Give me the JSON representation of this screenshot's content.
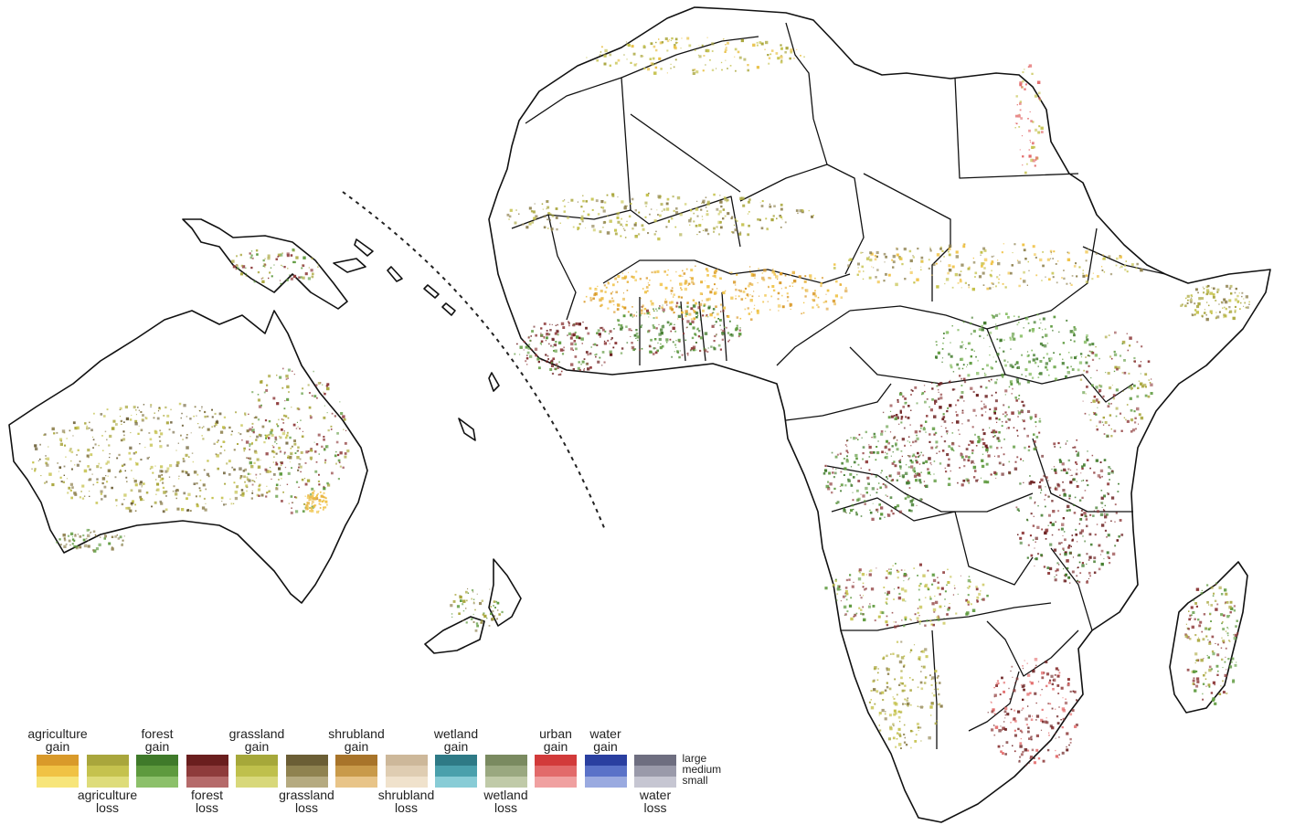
{
  "legend": {
    "items": [
      {
        "id": "agri-gain",
        "label_line1": "agriculture",
        "label_line2": "gain",
        "pos": "top",
        "colors": [
          "#d99a2a",
          "#f0c244",
          "#f7e57a"
        ]
      },
      {
        "id": "agri-loss",
        "label_line1": "agriculture",
        "label_line2": "loss",
        "pos": "bottom",
        "colors": [
          "#a9a63c",
          "#c5c24e",
          "#dedc7a"
        ]
      },
      {
        "id": "forest-gain",
        "label_line1": "forest",
        "label_line2": "gain",
        "pos": "top",
        "colors": [
          "#3f7a2a",
          "#5e9a3e",
          "#8cc06a"
        ]
      },
      {
        "id": "forest-loss",
        "label_line1": "forest",
        "label_line2": "loss",
        "pos": "bottom",
        "colors": [
          "#6a1e1e",
          "#8e3b3b",
          "#b56a6a"
        ]
      },
      {
        "id": "grass-gain",
        "label_line1": "grassland",
        "label_line2": "gain",
        "pos": "top",
        "colors": [
          "#a6a83a",
          "#bfc04c",
          "#d8d87a"
        ]
      },
      {
        "id": "grass-loss",
        "label_line1": "grassland",
        "label_line2": "loss",
        "pos": "bottom",
        "colors": [
          "#6b5e35",
          "#8f8250",
          "#b5aa80"
        ]
      },
      {
        "id": "shrub-gain",
        "label_line1": "shrubland",
        "label_line2": "gain",
        "pos": "top",
        "colors": [
          "#a8742a",
          "#c99a4a",
          "#e8c488"
        ]
      },
      {
        "id": "shrub-loss",
        "label_line1": "shrubland",
        "label_line2": "loss",
        "pos": "bottom",
        "colors": [
          "#cdb89a",
          "#dfcdb2",
          "#f0e2cc"
        ]
      },
      {
        "id": "wetland-gain",
        "label_line1": "wetland",
        "label_line2": "gain",
        "pos": "top",
        "colors": [
          "#2e7a86",
          "#4aa0ac",
          "#88ccd6"
        ]
      },
      {
        "id": "wetland-loss",
        "label_line1": "wetland",
        "label_line2": "loss",
        "pos": "bottom",
        "colors": [
          "#7a8a60",
          "#9aa880",
          "#c0caa8"
        ]
      },
      {
        "id": "urban-gain",
        "label_line1": "urban",
        "label_line2": "gain",
        "pos": "top",
        "colors": [
          "#d23a3a",
          "#e26a6a",
          "#f0a0a0"
        ]
      },
      {
        "id": "water-gain",
        "label_line1": "water",
        "label_line2": "gain",
        "pos": "top",
        "colors": [
          "#2a3fa0",
          "#5a72c8",
          "#9aaae0"
        ]
      },
      {
        "id": "water-loss",
        "label_line1": "water",
        "label_line2": "loss",
        "pos": "bottom",
        "colors": [
          "#6e6e80",
          "#9a9aaa",
          "#c6c6d2"
        ]
      }
    ],
    "sizes": [
      "large",
      "medium",
      "small"
    ]
  }
}
